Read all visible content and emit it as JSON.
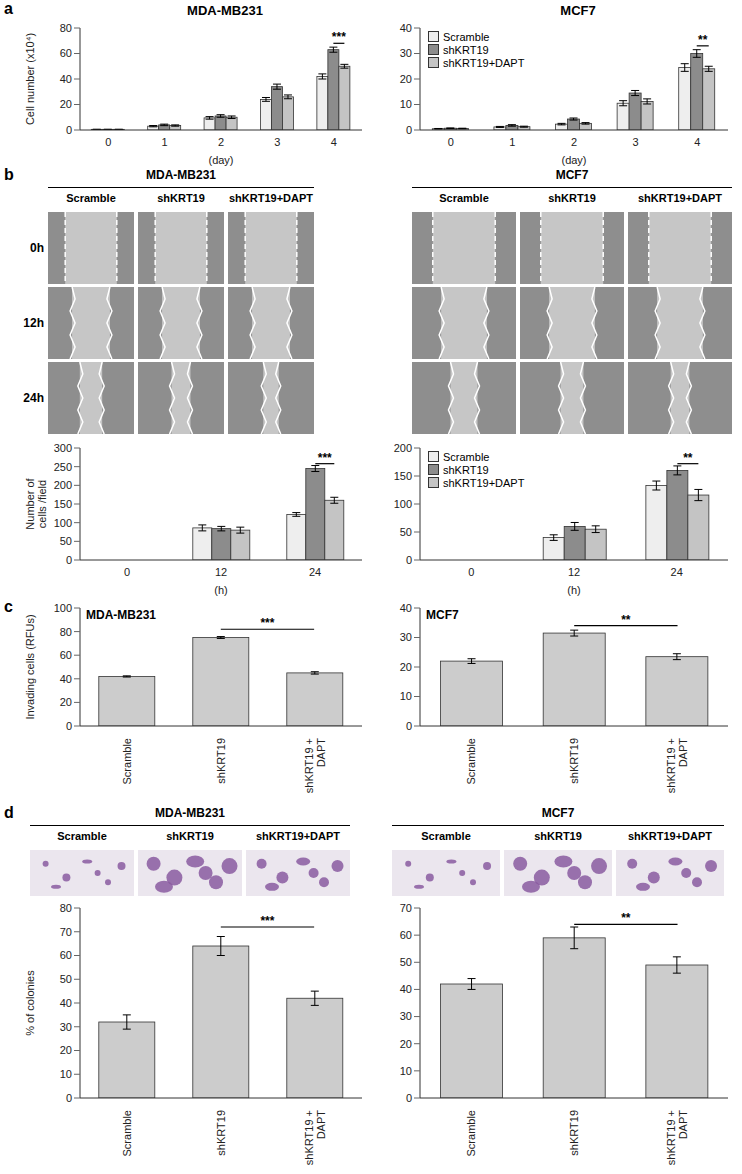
{
  "chart_data": [
    {
      "panel": "a",
      "type": "bar",
      "title": "MDA-MB231",
      "x_label": "(day)",
      "y_label": "Cell number (x10⁴)",
      "categories": [
        "0",
        "1",
        "2",
        "3",
        "4"
      ],
      "series": [
        {
          "name": "Scramble",
          "color": "#eeeeee",
          "values": [
            0.5,
            3,
            9.5,
            24,
            42
          ],
          "errors": [
            0.1,
            0.5,
            1,
            1.5,
            2
          ]
        },
        {
          "name": "shKRT19",
          "color": "#8c8c8c",
          "values": [
            0.5,
            4,
            11,
            34,
            63
          ],
          "errors": [
            0.1,
            0.6,
            1,
            2,
            2
          ]
        },
        {
          "name": "shKRT19+DAPT",
          "color": "#c4c4c4",
          "values": [
            0.5,
            3.5,
            10,
            26,
            50
          ],
          "errors": [
            0.1,
            0.5,
            1,
            1.5,
            1.5
          ]
        }
      ],
      "ylim": [
        0,
        80
      ],
      "yticks": [
        0,
        10,
        20,
        30,
        40,
        50,
        60,
        70,
        80
      ],
      "annotations": [
        {
          "text": "***",
          "category": "4",
          "from": "shKRT19",
          "to": "shKRT19+DAPT",
          "y": 68
        }
      ]
    },
    {
      "panel": "a",
      "type": "bar",
      "title": "MCF7",
      "x_label": "(day)",
      "legend": "upper left",
      "categories": [
        "0",
        "1",
        "2",
        "3",
        "4"
      ],
      "series": [
        {
          "name": "Scramble",
          "color": "#eeeeee",
          "values": [
            0.5,
            1.2,
            2.3,
            10.5,
            24.5
          ],
          "errors": [
            0.1,
            0.2,
            0.3,
            1,
            1.5
          ]
        },
        {
          "name": "shKRT19",
          "color": "#8c8c8c",
          "values": [
            0.7,
            1.8,
            4.3,
            14.5,
            30
          ],
          "errors": [
            0.1,
            0.3,
            0.4,
            1,
            1.5
          ]
        },
        {
          "name": "shKRT19+DAPT",
          "color": "#c4c4c4",
          "values": [
            0.6,
            1.3,
            2.6,
            11.2,
            24
          ],
          "errors": [
            0.1,
            0.2,
            0.3,
            1,
            1
          ]
        }
      ],
      "ylim": [
        0,
        40
      ],
      "yticks": [
        0,
        10,
        20,
        30,
        40
      ],
      "annotations": [
        {
          "text": "**",
          "category": "4",
          "from": "shKRT19",
          "to": "shKRT19+DAPT",
          "y": 33
        }
      ]
    },
    {
      "panel": "b",
      "type": "bar",
      "x_label": "(h)",
      "y_label": "Number of cells /field",
      "categories": [
        "0",
        "12",
        "24"
      ],
      "series": [
        {
          "name": "Scramble",
          "color": "#eeeeee",
          "values": [
            0,
            86,
            122
          ],
          "errors": [
            0,
            8,
            5
          ]
        },
        {
          "name": "shKRT19",
          "color": "#8c8c8c",
          "values": [
            0,
            84,
            245
          ],
          "errors": [
            0,
            6,
            8
          ]
        },
        {
          "name": "shKRT19+DAPT",
          "color": "#c4c4c4",
          "values": [
            0,
            80,
            160
          ],
          "errors": [
            0,
            8,
            8
          ]
        }
      ],
      "ylim": [
        0,
        300
      ],
      "yticks": [
        0,
        50,
        100,
        150,
        200,
        250,
        300
      ],
      "annotations": [
        {
          "text": "***",
          "category": "24",
          "from": "shKRT19",
          "to": "shKRT19+DAPT",
          "y": 258
        }
      ]
    },
    {
      "panel": "b",
      "type": "bar",
      "x_label": "(h)",
      "legend": "upper left",
      "categories": [
        "0",
        "12",
        "24"
      ],
      "series": [
        {
          "name": "Scramble",
          "color": "#eeeeee",
          "values": [
            0,
            40,
            133
          ],
          "errors": [
            0,
            5,
            8
          ]
        },
        {
          "name": "shKRT19",
          "color": "#8c8c8c",
          "values": [
            0,
            60,
            160
          ],
          "errors": [
            0,
            7,
            8
          ]
        },
        {
          "name": "shKRT19+DAPT",
          "color": "#c4c4c4",
          "values": [
            0,
            55,
            116
          ],
          "errors": [
            0,
            6,
            10
          ]
        }
      ],
      "ylim": [
        0,
        200
      ],
      "yticks": [
        0,
        50,
        100,
        150,
        200
      ],
      "annotations": [
        {
          "text": "**",
          "category": "24",
          "from": "shKRT19",
          "to": "shKRT19+DAPT",
          "y": 172
        }
      ]
    },
    {
      "panel": "c",
      "type": "bar",
      "title": "MDA-MB231",
      "y_label": "Invading cells (RFUs)",
      "categories": [
        "Scramble",
        "shKRT19",
        "shKRT19 + DAPT"
      ],
      "color": "#cccccc",
      "values": [
        42,
        75,
        45
      ],
      "errors": [
        0.5,
        0.8,
        1
      ],
      "ylim": [
        0,
        100
      ],
      "yticks": [
        0,
        20,
        40,
        60,
        80,
        100
      ],
      "annotations": [
        {
          "text": "***",
          "from": "shKRT19",
          "to": "shKRT19 + DAPT",
          "y": 82
        }
      ]
    },
    {
      "panel": "c",
      "type": "bar",
      "title": "MCF7",
      "categories": [
        "Scramble",
        "shKRT19",
        "shKRT19 + DAPT"
      ],
      "color": "#cccccc",
      "values": [
        22,
        31.5,
        23.5
      ],
      "errors": [
        0.8,
        1,
        1
      ],
      "ylim": [
        0,
        40
      ],
      "yticks": [
        0,
        10,
        20,
        30,
        40
      ],
      "annotations": [
        {
          "text": "**",
          "from": "shKRT19",
          "to": "shKRT19 + DAPT",
          "y": 34
        }
      ]
    },
    {
      "panel": "d",
      "type": "bar",
      "y_label": "% of colonies",
      "categories": [
        "Scramble",
        "shKRT19",
        "shKRT19 + DAPT"
      ],
      "color": "#cccccc",
      "values": [
        32,
        64,
        42
      ],
      "errors": [
        3,
        4,
        3
      ],
      "ylim": [
        0,
        80
      ],
      "yticks": [
        0,
        10,
        20,
        30,
        40,
        50,
        60,
        70,
        80
      ],
      "annotations": [
        {
          "text": "***",
          "from": "shKRT19",
          "to": "shKRT19 + DAPT",
          "y": 72
        }
      ]
    },
    {
      "panel": "d",
      "type": "bar",
      "categories": [
        "Scramble",
        "shKRT19",
        "shKRT19 + DAPT"
      ],
      "color": "#cccccc",
      "values": [
        42,
        59,
        49
      ],
      "errors": [
        2,
        4,
        3
      ],
      "ylim": [
        0,
        70
      ],
      "yticks": [
        0,
        10,
        20,
        30,
        40,
        50,
        60,
        70
      ],
      "annotations": [
        {
          "text": "**",
          "from": "shKRT19",
          "to": "shKRT19 + DAPT",
          "y": 64
        }
      ]
    }
  ],
  "micrographs": [
    {
      "panel": "b",
      "title": "MDA-MB231",
      "columns": [
        "Scramble",
        "shKRT19",
        "shKRT19+DAPT"
      ],
      "rows": [
        "0h",
        "12h",
        "24h"
      ]
    },
    {
      "panel": "b",
      "title": "MCF7",
      "columns": [
        "Scramble",
        "shKRT19",
        "shKRT19+DAPT"
      ]
    },
    {
      "panel": "d",
      "title": "MDA-MB231",
      "columns": [
        "Scramble",
        "shKRT19",
        "shKRT19+DAPT"
      ]
    },
    {
      "panel": "d",
      "title": "MCF7",
      "columns": [
        "Scramble",
        "shKRT19",
        "shKRT19+DAPT"
      ]
    }
  ]
}
